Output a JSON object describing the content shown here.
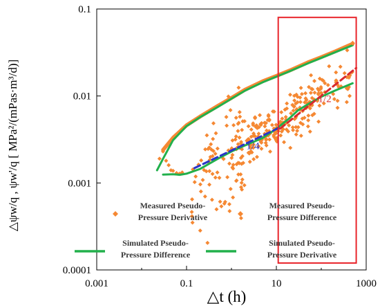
{
  "chart_data": {
    "type": "scatter",
    "xscale": "log",
    "yscale": "log",
    "xlim": [
      0.001,
      1000
    ],
    "ylim": [
      0.0001,
      0.1
    ],
    "xticks": [
      "0.001",
      "0.1",
      "10",
      "1000"
    ],
    "yticks": [
      "0.1",
      "0.01",
      "0.001",
      "0.0001"
    ],
    "xlabel": "△t (h)",
    "ylabel": "△ψw/q , ψw'/q [ MPa²/(mPas·m³/d)]",
    "colors": {
      "measured": "#F58833",
      "simulated": "#22B04C",
      "quarter_line": "#2B35C8",
      "half_line": "#D82A2E",
      "highlight_box": "#E8232A"
    },
    "series": [
      {
        "name": "Measured Pseudo-Pressure Derivative",
        "kind": "scatter",
        "generated": {
          "x_range": [
            0.03,
            500
          ],
          "center": [
            [
              0.03,
              0.0022
            ],
            [
              0.05,
              0.00135
            ],
            [
              0.1,
              0.0012
            ],
            [
              0.2,
              0.0015
            ],
            [
              0.5,
              0.0021
            ],
            [
              1,
              0.0025
            ],
            [
              3,
              0.0032
            ],
            [
              10,
              0.0042
            ],
            [
              20,
              0.0055
            ],
            [
              50,
              0.008
            ],
            [
              100,
              0.0105
            ],
            [
              250,
              0.013
            ],
            [
              500,
              0.015
            ]
          ],
          "scatter_decades": 0.13,
          "count": 330
        }
      },
      {
        "name": "Measured Pseudo-Pressure Difference",
        "kind": "line-markers",
        "x": [
          0.03,
          0.05,
          0.1,
          0.2,
          0.5,
          1,
          2,
          5,
          10,
          20,
          50,
          100,
          200,
          500
        ],
        "y": [
          0.0024,
          0.0033,
          0.0046,
          0.0058,
          0.0077,
          0.0095,
          0.0118,
          0.0148,
          0.017,
          0.0197,
          0.0243,
          0.028,
          0.0324,
          0.0398
        ]
      },
      {
        "name": "Simulated Pseudo-Pressure Difference",
        "kind": "line",
        "x": [
          0.022,
          0.03,
          0.05,
          0.1,
          0.2,
          0.5,
          1,
          2,
          5,
          10,
          20,
          50,
          100,
          200,
          500
        ],
        "y": [
          0.0014,
          0.0019,
          0.0031,
          0.0045,
          0.0057,
          0.0075,
          0.0093,
          0.0115,
          0.0144,
          0.0167,
          0.0193,
          0.0237,
          0.0274,
          0.0317,
          0.0383
        ]
      },
      {
        "name": "Simulated Pseudo-Pressure Derivative",
        "kind": "line",
        "x": [
          0.03,
          0.05,
          0.07,
          0.1,
          0.2,
          0.5,
          1,
          2,
          5,
          10,
          20,
          30,
          50,
          100,
          200,
          500
        ],
        "y": [
          0.00125,
          0.00126,
          0.00124,
          0.00128,
          0.00145,
          0.0019,
          0.0023,
          0.0027,
          0.0033,
          0.0042,
          0.0056,
          0.0068,
          0.008,
          0.0098,
          0.0115,
          0.014
        ]
      }
    ],
    "reference_lines": [
      {
        "label": "1/4",
        "x": [
          0.15,
          12
        ],
        "y": [
          0.00148,
          0.00435
        ],
        "color": "#2B35C8"
      },
      {
        "label": "1/2",
        "x": [
          12,
          600
        ],
        "y": [
          0.0042,
          0.021
        ],
        "color": "#D82A2E"
      }
    ],
    "annotations": [
      {
        "text": "1/4",
        "x": 3.0,
        "y": 0.00245,
        "color": "#2B35C8"
      },
      {
        "text": "1/2",
        "x": 120,
        "y": 0.0085,
        "color": "#D82A2E"
      }
    ],
    "highlight_box": {
      "x": [
        11,
        600
      ],
      "y": [
        0.00012,
        0.08
      ]
    },
    "legend": {
      "placement": "bottom",
      "columns": 2,
      "entries": [
        {
          "name": "Measured Pseudo-Pressure Derivative",
          "line1": "Measured Pseudo-",
          "line2": "Pressure Derivative",
          "marker": "diamond",
          "color": "#F58833"
        },
        {
          "name": "Measured Pseudo-Pressure Difference",
          "line1": "Measured Pseudo-",
          "line2": "Pressure Difference",
          "marker": "diamond",
          "color": "#F58833"
        },
        {
          "name": "Simulated Pseudo-Pressure Difference",
          "line1": "Simulated Pseudo-",
          "line2": "Pressure Difference",
          "marker": "line",
          "color": "#22B04C"
        },
        {
          "name": "Simulated Pseudo-Pressure Derivative",
          "line1": "Simulated Pseudo-",
          "line2": "Pressure Derivative",
          "marker": "line",
          "color": "#22B04C"
        }
      ]
    }
  }
}
